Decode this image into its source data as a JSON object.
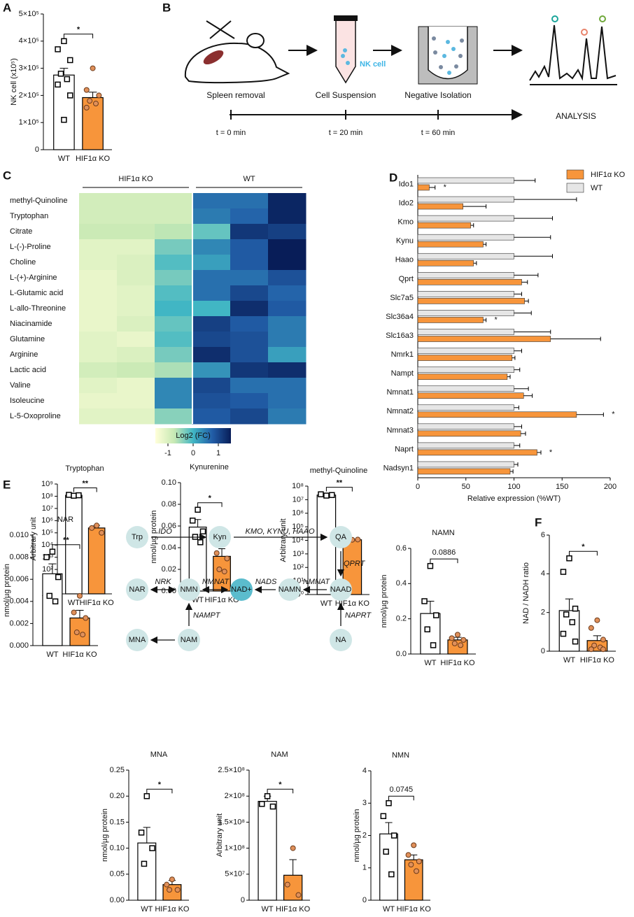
{
  "panel_labels": [
    "A",
    "B",
    "C",
    "D",
    "E",
    "F"
  ],
  "workflow": {
    "steps": [
      "Spleen removal",
      "Cell Suspension",
      "Negative Isolation"
    ],
    "cell_label": "NK cell",
    "timepoints": [
      "t = 0 min",
      "t = 20 min",
      "t = 60 min"
    ],
    "analysis": "ANALYSIS"
  },
  "pathway": {
    "nodes": [
      "Trp",
      "Kyn",
      "QA",
      "NAAD",
      "NAMN",
      "NAD+",
      "NMN",
      "NAR",
      "NA",
      "NAM",
      "MNA"
    ],
    "enzymes": [
      "IDO",
      "KMO, KYNU, HAAO",
      "QPRT",
      "NMNAT",
      "NADS",
      "NMNAT",
      "NRK",
      "NAMPT",
      "NAPRT"
    ]
  },
  "chart_data": [
    {
      "type": "bar_dots",
      "ylabel": "NK cell (x10⁵)",
      "categories": [
        "WT",
        "HIF1α KO"
      ],
      "values": [
        275000,
        192000
      ],
      "errors": [
        25000,
        20000
      ],
      "points": [
        [
          400000,
          370000,
          330000,
          280000,
          260000,
          240000,
          200000,
          110000
        ],
        [
          300000,
          220000,
          200000,
          180000,
          170000,
          155000
        ]
      ],
      "colors": [
        "#ffffff",
        "#f7953b"
      ],
      "point_colors": [
        "#ffffff",
        "#e0905a"
      ],
      "log_scale": false,
      "ylim": [
        0,
        500000
      ],
      "yticks": [
        0,
        {
          "value": 100000,
          "label": "1×10⁵"
        },
        {
          "value": 200000,
          "label": "2×10⁵"
        },
        {
          "value": 300000,
          "label": "3×10⁵"
        },
        {
          "value": 400000,
          "label": "4×10⁵"
        },
        {
          "value": 500000,
          "label": "5×10⁵"
        }
      ],
      "significance": "*"
    },
    {
      "type": "heatmap",
      "groups": [
        "HIF1α KO",
        "WT"
      ],
      "rows": [
        "methyl-Quinoline",
        "Tryptophan",
        "Citrate",
        "L-(-)-Proline",
        "Choline",
        "L-(+)-Arginine",
        "L-Glutamic acid",
        "L-allo-Threonine",
        "Niacinamide",
        "Glutamine",
        "Arginine",
        "Lactic acid",
        "Valine",
        "Isoleucine",
        "L-5-Oxoproline"
      ],
      "values": [
        [
          -0.9,
          -0.9,
          -0.9,
          0.6,
          0.6,
          1.4
        ],
        [
          -0.9,
          -0.9,
          -0.9,
          0.5,
          0.7,
          1.4
        ],
        [
          -0.8,
          -0.8,
          -0.7,
          -0.2,
          1.2,
          1.1
        ],
        [
          -1.1,
          -1.1,
          -0.3,
          0.4,
          0.8,
          1.5
        ],
        [
          -1.1,
          -1.0,
          -0.1,
          0.2,
          0.8,
          1.5
        ],
        [
          -1.2,
          -1.0,
          -0.3,
          0.6,
          0.6,
          0.9
        ],
        [
          -1.2,
          -1.1,
          -0.1,
          0.6,
          1.0,
          0.7
        ],
        [
          -1.2,
          -1.1,
          0.0,
          0.0,
          1.3,
          0.8
        ],
        [
          -1.2,
          -1.0,
          -0.2,
          1.1,
          0.8,
          0.5
        ],
        [
          -1.1,
          -1.2,
          -0.1,
          1.0,
          0.9,
          0.5
        ],
        [
          -1.1,
          -1.0,
          -0.3,
          1.3,
          0.9,
          0.2
        ],
        [
          -0.9,
          -0.8,
          -0.6,
          0.3,
          1.2,
          1.3
        ],
        [
          -1.1,
          -1.2,
          0.4,
          1.0,
          0.6,
          0.6
        ],
        [
          -1.2,
          -1.2,
          0.4,
          0.9,
          0.8,
          0.6
        ],
        [
          -1.1,
          -1.1,
          -0.4,
          0.8,
          1.0,
          0.5
        ]
      ],
      "colorbar_label": "Log2 (FC)",
      "zlim": [
        -1.5,
        1.5
      ],
      "zticks": [
        -1,
        0,
        1
      ],
      "colormap": [
        "#ffffd9",
        "#c7e9b4",
        "#41b6c4",
        "#225ea8",
        "#081d58"
      ]
    },
    {
      "type": "hbar",
      "categories": [
        "Ido1",
        "Ido2",
        "Kmo",
        "Kynu",
        "Haao",
        "Qprt",
        "Slc7a5",
        "Slc36a4",
        "Slc16a3",
        "Nmrk1",
        "Nampt",
        "Nmnat1",
        "Nmnat2",
        "Nmnat3",
        "Naprt",
        "Nadsyn1"
      ],
      "series": [
        {
          "name": "HIF1α KO",
          "color": "#f7953b",
          "values": [
            12,
            47,
            55,
            68,
            58,
            108,
            111,
            68,
            138,
            98,
            93,
            110,
            165,
            107,
            124,
            96
          ],
          "errors": [
            6,
            24,
            3,
            3,
            3,
            6,
            4,
            3,
            52,
            3,
            3,
            9,
            28,
            5,
            4,
            3
          ]
        },
        {
          "name": "WT",
          "color": "#e6e6e6",
          "values": [
            100,
            100,
            100,
            100,
            100,
            100,
            100,
            100,
            100,
            100,
            100,
            100,
            100,
            100,
            100,
            100
          ],
          "errors": [
            22,
            65,
            40,
            38,
            40,
            25,
            8,
            18,
            38,
            8,
            6,
            15,
            5,
            8,
            6,
            4
          ]
        }
      ],
      "xlabel": "Relative expression (%WT)",
      "xlim": [
        0,
        200
      ],
      "xticks": [
        0,
        50,
        100,
        150,
        200
      ],
      "legend": "top-right",
      "annotations": [
        {
          "text": "*",
          "category": "Ido1"
        },
        {
          "text": "*",
          "category": "Slc36a4"
        },
        {
          "text": "*",
          "category": "Nmnat2"
        },
        {
          "text": "*",
          "category": "Naprt"
        }
      ]
    },
    {
      "type": "bar_dots",
      "title": "Tryptophan",
      "ylabel": "Arbitrary unit",
      "categories": [
        "WT",
        "HIF1α KO"
      ],
      "values": [
        120000000,
        250000
      ],
      "errors": [
        10000000,
        150000
      ],
      "points": [
        [
          110000000,
          130000000,
          120000000
        ],
        [
          400000,
          250000,
          100000
        ]
      ],
      "colors": [
        "#ffffff",
        "#f7953b"
      ],
      "point_colors": [
        "#ffffff",
        "#e0905a"
      ],
      "log_scale": true,
      "ylim": [
        1,
        1000000000
      ],
      "yticks": [
        {
          "value": 1,
          "label": "10⁰"
        },
        {
          "value": 10,
          "label": "10¹"
        },
        {
          "value": 100,
          "label": "10²"
        },
        {
          "value": 1000,
          "label": "10³"
        },
        {
          "value": 10000,
          "label": "10⁴"
        },
        {
          "value": 100000,
          "label": "10⁵"
        },
        {
          "value": 1000000,
          "label": "10⁶"
        },
        {
          "value": 10000000,
          "label": "10⁷"
        },
        {
          "value": 100000000,
          "label": "10⁸"
        },
        {
          "value": 1000000000,
          "label": "10⁹"
        }
      ],
      "significance": "**"
    },
    {
      "type": "bar_dots",
      "title": "Kynurenine",
      "ylabel": "nmol/µg protein",
      "categories": [
        "WT",
        "HIF1α KO"
      ],
      "values": [
        0.059,
        0.032
      ],
      "errors": [
        0.007,
        0.007
      ],
      "points": [
        [
          0.075,
          0.065,
          0.055,
          0.05,
          0.045
        ],
        [
          0.046,
          0.035,
          0.03,
          0.02,
          0.018
        ]
      ],
      "colors": [
        "#ffffff",
        "#f7953b"
      ],
      "point_colors": [
        "#ffffff",
        "#e0905a"
      ],
      "log_scale": false,
      "ylim": [
        0,
        0.1
      ],
      "yticks": [
        {
          "value": 0,
          "label": "0.00"
        },
        0.02,
        0.04,
        0.06,
        0.08,
        {
          "value": 0.1,
          "label": "0.10"
        }
      ],
      "significance": "*"
    },
    {
      "type": "bar_dots",
      "title": "methyl-Quinoline",
      "ylabel": "Arbitrary unit",
      "categories": [
        "WT",
        "HIF1α KO"
      ],
      "values": [
        22000000,
        11000
      ],
      "errors": [
        3000000,
        500
      ],
      "points": [
        [
          20000000,
          25000000,
          22000000
        ],
        [
          11000,
          11000,
          11500
        ]
      ],
      "colors": [
        "#ffffff",
        "#f7953b"
      ],
      "point_colors": [
        "#ffffff",
        "#e0905a"
      ],
      "log_scale": true,
      "ylim": [
        1,
        100000000
      ],
      "yticks": [
        {
          "value": 1,
          "label": "10⁰"
        },
        {
          "value": 10,
          "label": "10¹"
        },
        {
          "value": 100,
          "label": "10²"
        },
        {
          "value": 1000,
          "label": "10³"
        },
        {
          "value": 10000,
          "label": "10⁴"
        },
        {
          "value": 100000,
          "label": "10⁵"
        },
        {
          "value": 1000000,
          "label": "10⁶"
        },
        {
          "value": 10000000,
          "label": "10⁷"
        },
        {
          "value": 100000000,
          "label": "10⁸"
        }
      ],
      "significance": "**"
    },
    {
      "type": "bar_dots",
      "title": "NAR",
      "ylabel": "nmol/µg protein",
      "categories": [
        "WT",
        "HIF1α KO"
      ],
      "values": [
        0.0065,
        0.0025
      ],
      "errors": [
        0.0009,
        0.0007
      ],
      "points": [
        [
          0.0085,
          0.008,
          0.0062,
          0.0045,
          0.004
        ],
        [
          0.0045,
          0.003,
          0.0025,
          0.0012,
          0.001
        ]
      ],
      "colors": [
        "#ffffff",
        "#f7953b"
      ],
      "point_colors": [
        "#ffffff",
        "#e0905a"
      ],
      "log_scale": false,
      "ylim": [
        0,
        0.01
      ],
      "yticks": [
        {
          "value": 0,
          "label": "0.000"
        },
        0.002,
        0.004,
        0.006,
        0.008,
        {
          "value": 0.01,
          "label": "0.010"
        }
      ],
      "significance": "**"
    },
    {
      "type": "bar_dots",
      "title": "NAMN",
      "ylabel": "nmol/µg protein",
      "categories": [
        "WT",
        "HIF1α KO"
      ],
      "values": [
        0.23,
        0.08
      ],
      "errors": [
        0.07,
        0.015
      ],
      "points": [
        [
          0.5,
          0.3,
          0.22,
          0.14,
          0.05
        ],
        [
          0.11,
          0.09,
          0.08,
          0.06,
          0.05
        ]
      ],
      "colors": [
        "#ffffff",
        "#f7953b"
      ],
      "point_colors": [
        "#ffffff",
        "#e0905a"
      ],
      "log_scale": false,
      "ylim": [
        0,
        0.6
      ],
      "yticks": [
        {
          "value": 0,
          "label": "0.0"
        },
        0.2,
        0.4,
        0.6
      ],
      "significance": "0.0886"
    },
    {
      "type": "bar_dots",
      "title": "MNA",
      "ylabel": "nmol/µg protein",
      "categories": [
        "WT",
        "HIF1α KO"
      ],
      "values": [
        0.11,
        0.03
      ],
      "errors": [
        0.03,
        0.008
      ],
      "points": [
        [
          0.2,
          0.13,
          0.1,
          0.07
        ],
        [
          0.04,
          0.03,
          0.02,
          0.02
        ]
      ],
      "colors": [
        "#ffffff",
        "#f7953b"
      ],
      "point_colors": [
        "#ffffff",
        "#e0905a"
      ],
      "log_scale": false,
      "ylim": [
        0,
        0.25
      ],
      "yticks": [
        {
          "value": 0,
          "label": "0.00"
        },
        0.05,
        {
          "value": 0.1,
          "label": "0.10"
        },
        0.15,
        {
          "value": 0.2,
          "label": "0.20"
        },
        0.25
      ],
      "significance": "*"
    },
    {
      "type": "bar_dots",
      "title": "NAM",
      "ylabel": "Arbitrary unit",
      "categories": [
        "WT",
        "HIF1α KO"
      ],
      "values": [
        190000000,
        48000000
      ],
      "errors": [
        10000000,
        30000000
      ],
      "points": [
        [
          200000000,
          185000000,
          180000000
        ],
        [
          100000000,
          30000000,
          10000000
        ]
      ],
      "colors": [
        "#ffffff",
        "#f7953b"
      ],
      "point_colors": [
        "#ffffff",
        "#e0905a"
      ],
      "log_scale": false,
      "ylim": [
        0,
        250000000
      ],
      "yticks": [
        0,
        {
          "value": 50000000,
          "label": "5×10⁷"
        },
        {
          "value": 100000000,
          "label": "1×10⁸"
        },
        {
          "value": 150000000,
          "label": "1.5×10⁸"
        },
        {
          "value": 200000000,
          "label": "2×10⁸"
        },
        {
          "value": 250000000,
          "label": "2.5×10⁸"
        }
      ],
      "significance": "*"
    },
    {
      "type": "bar_dots",
      "title": "NMN",
      "ylabel": "nmol/µg protein",
      "categories": [
        "WT",
        "HIF1α KO"
      ],
      "values": [
        2.05,
        1.25
      ],
      "errors": [
        0.35,
        0.15
      ],
      "points": [
        [
          3,
          2.6,
          2.0,
          1.5,
          0.8
        ],
        [
          1.7,
          1.4,
          1.2,
          1.1,
          0.9
        ]
      ],
      "colors": [
        "#ffffff",
        "#f7953b"
      ],
      "point_colors": [
        "#ffffff",
        "#e0905a"
      ],
      "log_scale": false,
      "ylim": [
        0,
        4
      ],
      "yticks": [
        0,
        1,
        2,
        3,
        4
      ],
      "significance": "0.0745"
    },
    {
      "type": "bar_dots",
      "ylabel": "NAD / NADH ratio",
      "categories": [
        "WT",
        "HIF1α KO"
      ],
      "values": [
        2.1,
        0.55
      ],
      "errors": [
        0.6,
        0.25
      ],
      "points": [
        [
          4.8,
          4.1,
          2.2,
          1.9,
          1.5,
          0.9,
          0.5
        ],
        [
          1.6,
          1.2,
          0.6,
          0.3,
          0.2,
          0.1,
          0.1
        ]
      ],
      "colors": [
        "#ffffff",
        "#f7953b"
      ],
      "point_colors": [
        "#ffffff",
        "#e0905a"
      ],
      "log_scale": false,
      "ylim": [
        0,
        6
      ],
      "yticks": [
        0,
        2,
        4,
        6
      ],
      "significance": "*"
    }
  ]
}
